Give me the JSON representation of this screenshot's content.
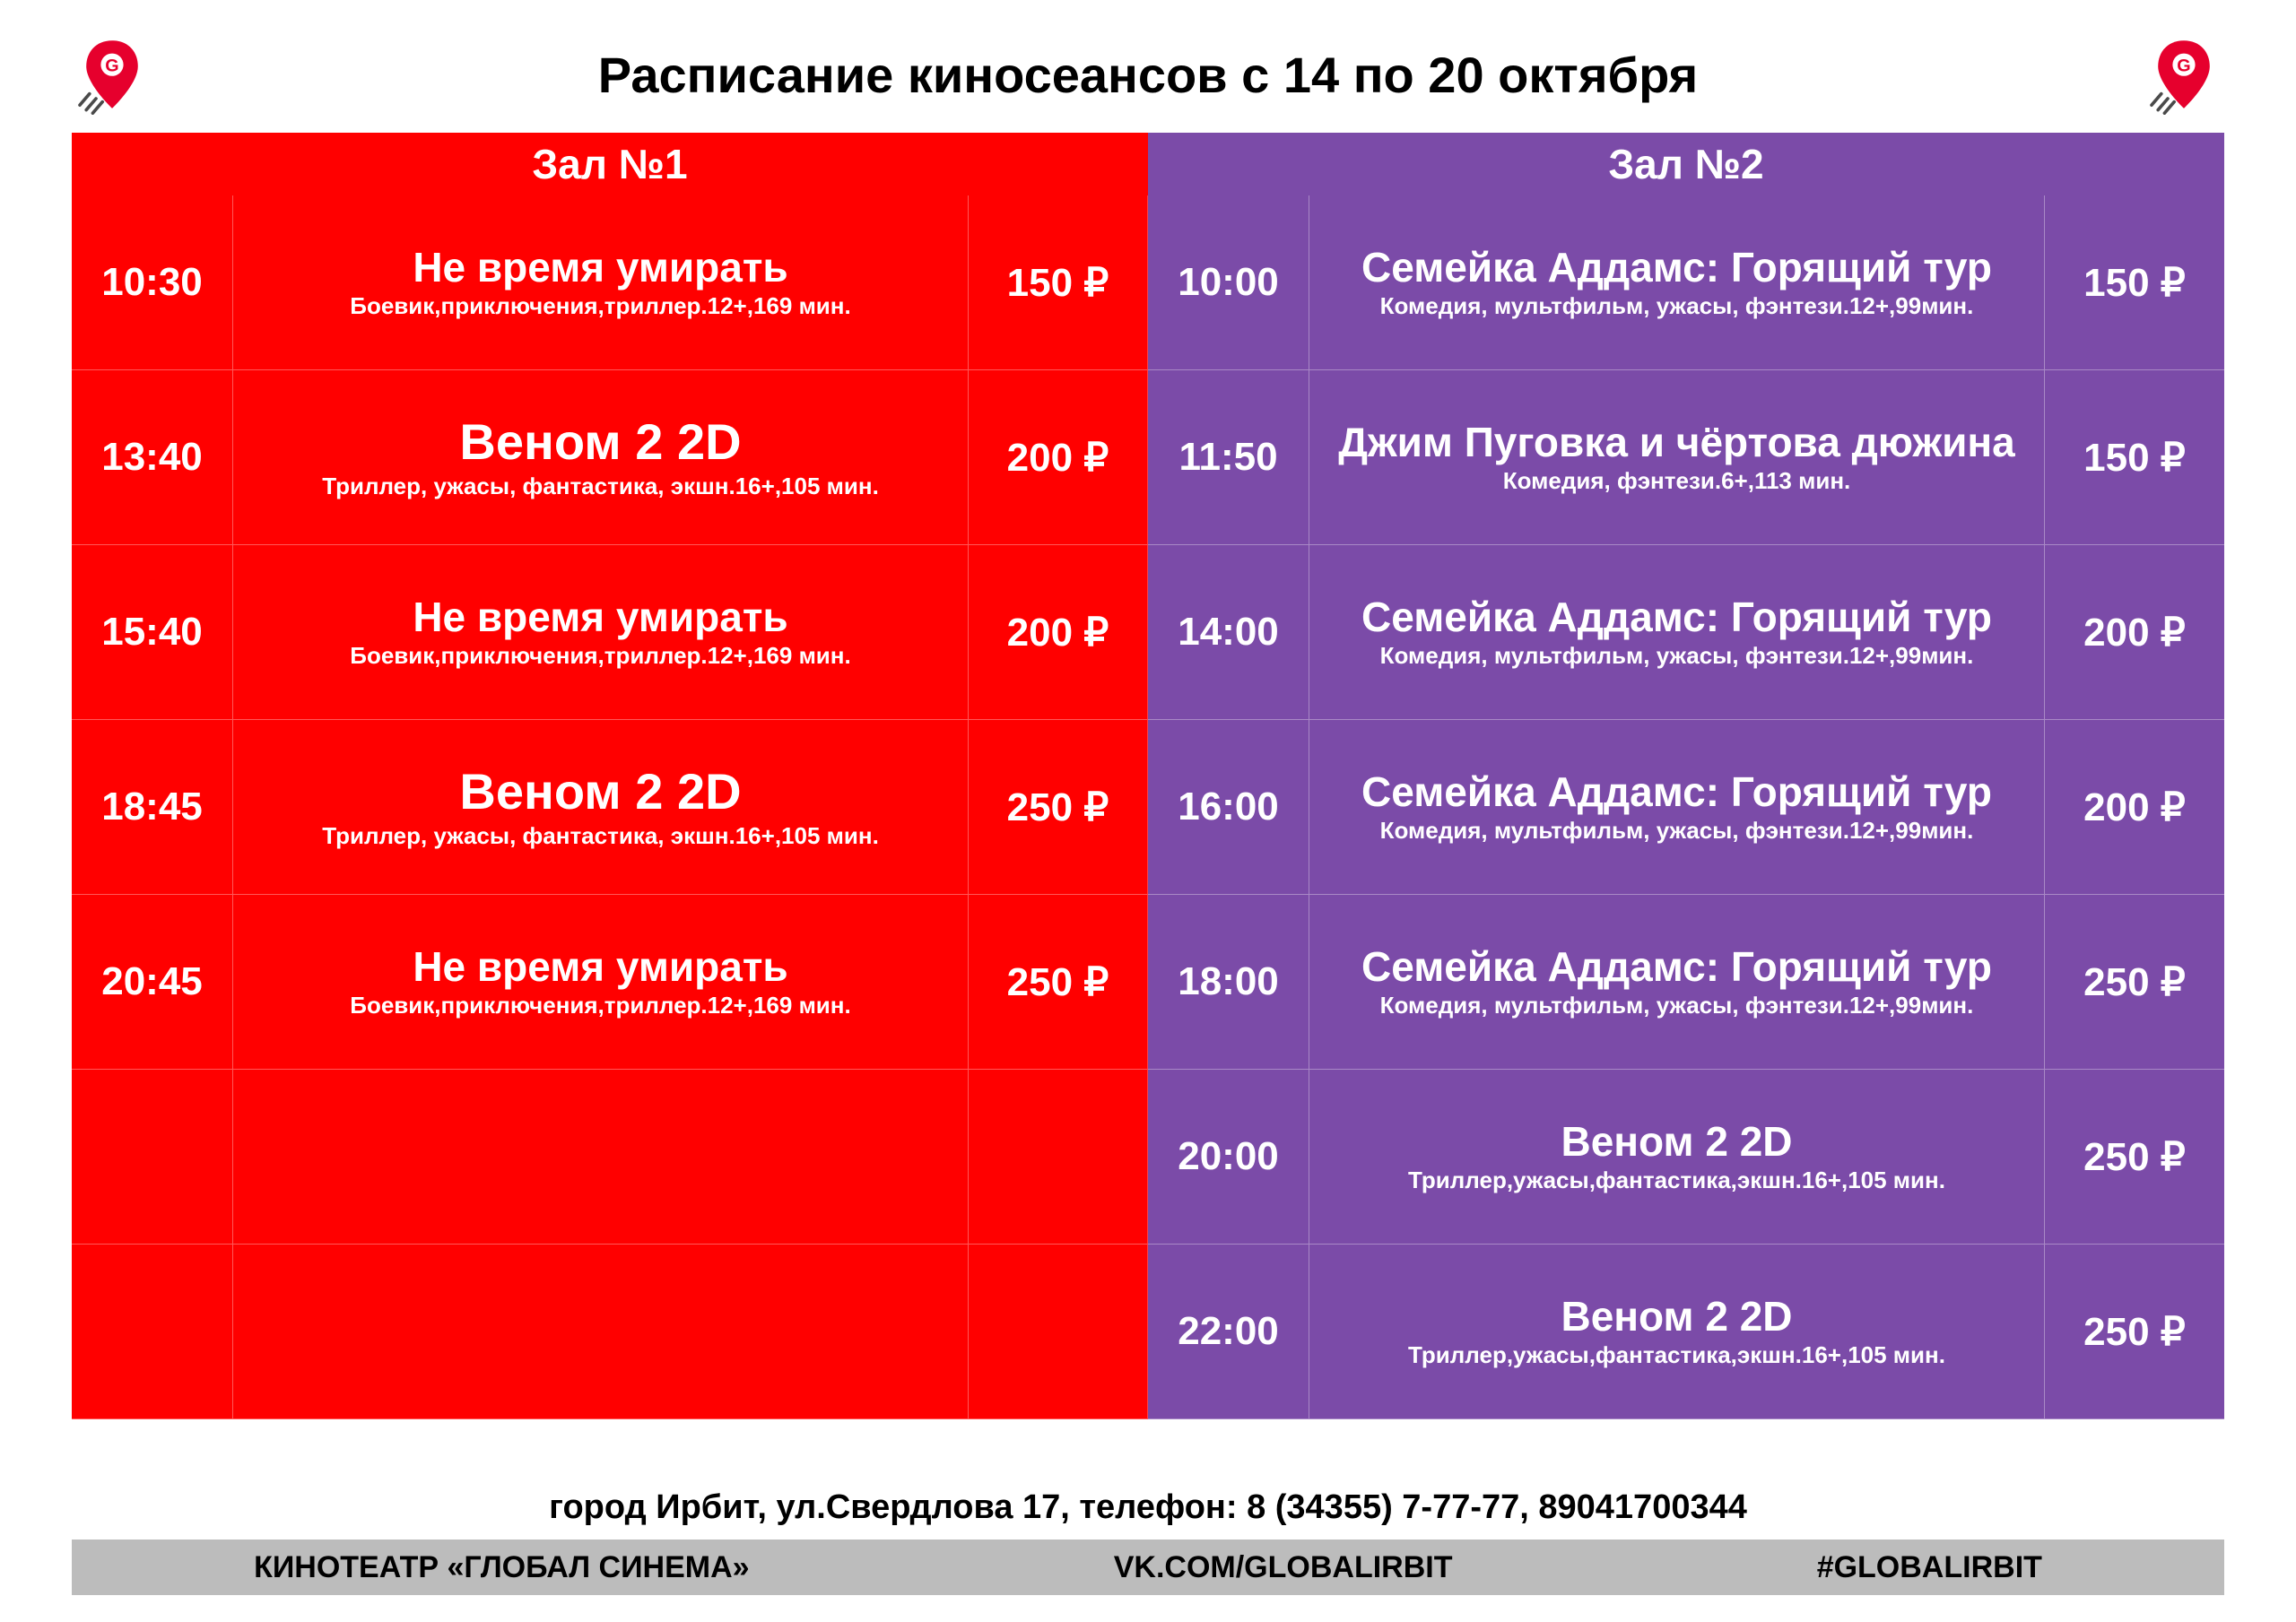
{
  "colors": {
    "hall1_bg": "#ff0000",
    "hall2_bg": "#7b4ba8",
    "white": "#ffffff",
    "black": "#000000",
    "footer_bar_bg": "#bcbcbc",
    "logo_red": "#e6002d",
    "logo_grey": "#4a4a4a"
  },
  "title": "Расписание киносеансов с 14 по 20 октября",
  "hall1": {
    "header": "Зал №1",
    "rows": [
      {
        "time": "10:30",
        "title": "Не время умирать",
        "big": false,
        "sub": "Боевик,приключения,триллер.12+,169 мин.",
        "price": "150 ₽"
      },
      {
        "time": "13:40",
        "title": "Веном 2  2D",
        "big": true,
        "sub": "Триллер, ужасы, фантастика, экшн.16+,105 мин.",
        "price": "200 ₽"
      },
      {
        "time": "15:40",
        "title": "Не время умирать",
        "big": false,
        "sub": "Боевик,приключения,триллер.12+,169 мин.",
        "price": "200 ₽"
      },
      {
        "time": "18:45",
        "title": "Веном 2  2D",
        "big": true,
        "sub": "Триллер, ужасы, фантастика, экшн.16+,105 мин.",
        "price": "250 ₽"
      },
      {
        "time": "20:45",
        "title": "Не время умирать",
        "big": false,
        "sub": "Боевик,приключения,триллер.12+,169 мин.",
        "price": "250 ₽"
      },
      {
        "time": "",
        "title": "",
        "big": false,
        "sub": "",
        "price": ""
      },
      {
        "time": "",
        "title": "",
        "big": false,
        "sub": "",
        "price": ""
      }
    ]
  },
  "hall2": {
    "header": "Зал №2",
    "rows": [
      {
        "time": "10:00",
        "title": "Семейка Аддамс: Горящий тур",
        "big": false,
        "sub": "Комедия, мультфильм, ужасы, фэнтези.12+,99мин.",
        "price": "150 ₽"
      },
      {
        "time": "11:50",
        "title": "Джим Пуговка и чёртова дюжина",
        "big": false,
        "sub": "Комедия, фэнтези.6+,113 мин.",
        "price": "150 ₽"
      },
      {
        "time": "14:00",
        "title": "Семейка Аддамс: Горящий тур",
        "big": false,
        "sub": "Комедия, мультфильм, ужасы, фэнтези.12+,99мин.",
        "price": "200 ₽"
      },
      {
        "time": "16:00",
        "title": "Семейка Аддамс: Горящий тур",
        "big": false,
        "sub": "Комедия, мультфильм, ужасы, фэнтези.12+,99мин.",
        "price": "200 ₽"
      },
      {
        "time": "18:00",
        "title": "Семейка Аддамс: Горящий тур",
        "big": false,
        "sub": "Комедия, мультфильм, ужасы, фэнтези.12+,99мин.",
        "price": "250 ₽"
      },
      {
        "time": "20:00",
        "title": "Веном 2   2D",
        "big": false,
        "sub": "Триллер,ужасы,фантастика,экшн.16+,105 мин.",
        "price": "250 ₽"
      },
      {
        "time": "22:00",
        "title": "Веном 2   2D",
        "big": false,
        "sub": "Триллер,ужасы,фантастика,экшн.16+,105 мин.",
        "price": "250 ₽"
      }
    ]
  },
  "footer": {
    "address": "город Ирбит, ул.Свердлова 17, телефон: 8 (34355) 7-77-77, 89041700344",
    "bar": {
      "cinema": "КИНОТЕАТР «ГЛОБАЛ СИНЕМА»",
      "vk": "VK.COM/GLOBALIRBIT",
      "hashtag": "#GLOBALIRBIT"
    }
  }
}
